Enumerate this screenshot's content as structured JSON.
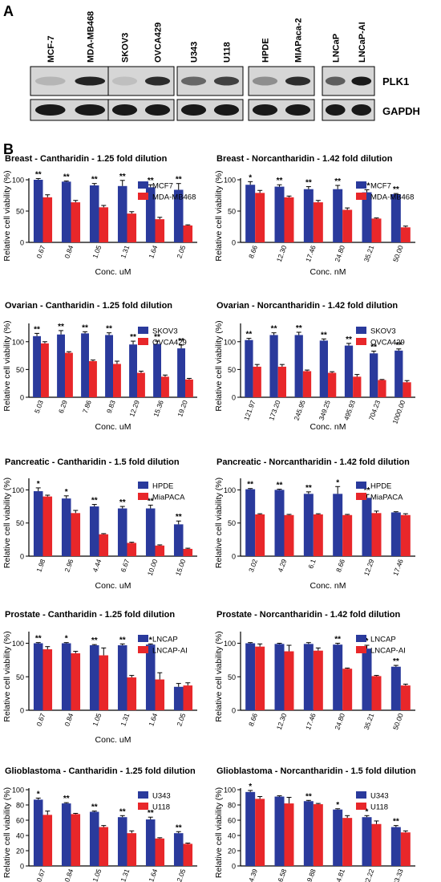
{
  "panel_labels": {
    "a": "A",
    "b": "B"
  },
  "blot": {
    "groups": [
      {
        "lanes": [
          "MCF-7",
          "MDA-MB468"
        ],
        "plk1": [
          0.15,
          0.9
        ]
      },
      {
        "lanes": [
          "SKOV3",
          "OVCA429"
        ],
        "plk1": [
          0.1,
          0.85
        ]
      },
      {
        "lanes": [
          "U343",
          "U118"
        ],
        "plk1": [
          0.55,
          0.75
        ]
      },
      {
        "lanes": [
          "HPDE",
          "MIAPaca-2"
        ],
        "plk1": [
          0.35,
          0.85
        ]
      },
      {
        "lanes": [
          "LNCaP",
          "LNCaP-AI"
        ],
        "plk1": [
          0.6,
          0.95
        ]
      }
    ],
    "row_labels": [
      "PLK1",
      "GAPDH"
    ]
  },
  "colors": {
    "series1": "#2a3a9c",
    "series2": "#e8272a"
  },
  "chart_data": [
    {
      "type": "bar",
      "title": "Breast - Cantharidin - 1.25 fold dilution",
      "xlabel": "Conc. uM",
      "ylabel": "Relative cell viability (%)",
      "ylim": [
        0,
        100
      ],
      "yticks": [
        "0",
        "50",
        "100"
      ],
      "categories": [
        "0.67",
        "0.84",
        "1.05",
        "1.31",
        "1.64",
        "2.05"
      ],
      "series": [
        {
          "name": "MCF7",
          "values": [
            100,
            97,
            91,
            90,
            88,
            84
          ],
          "err": [
            2,
            1,
            3,
            9,
            4,
            10
          ]
        },
        {
          "name": "MDA-MB468",
          "values": [
            72,
            64,
            56,
            46,
            37,
            27
          ],
          "err": [
            4,
            3,
            3,
            3,
            3,
            1
          ]
        }
      ],
      "annotations": [
        "**",
        "**",
        "**",
        "**",
        "**",
        "**"
      ]
    },
    {
      "type": "bar",
      "title": "Breast - Norcantharidin - 1.42 fold dilution",
      "xlabel": "Conc. nM",
      "ylabel": "Relative cell viability (%)",
      "ylim": [
        0,
        100
      ],
      "yticks": [
        "0",
        "50",
        "100"
      ],
      "categories": [
        "8.66",
        "12.30",
        "17.46",
        "24.80",
        "35.21",
        "50.00"
      ],
      "series": [
        {
          "name": "MCF7",
          "values": [
            92,
            89,
            85,
            85,
            80,
            77
          ],
          "err": [
            5,
            3,
            4,
            6,
            4,
            1
          ]
        },
        {
          "name": "MDA-MB468",
          "values": [
            79,
            72,
            64,
            52,
            38,
            24
          ],
          "err": [
            4,
            2,
            3,
            3,
            1,
            2
          ]
        }
      ],
      "annotations": [
        "*",
        "**",
        "**",
        "**",
        "**",
        "**"
      ]
    },
    {
      "type": "bar",
      "title": "Ovarian - Cantharidin - 1.25 fold dilution",
      "xlabel": "Conc. uM",
      "ylabel": "Relative cell viability (%)",
      "ylim": [
        0,
        130
      ],
      "yticks": [
        "0",
        "50",
        "100"
      ],
      "categories": [
        "5.03",
        "6.29",
        "7.86",
        "9.83",
        "12.29",
        "15.36",
        "19.20"
      ],
      "series": [
        {
          "name": "SKOV3",
          "values": [
            110,
            113,
            115,
            112,
            95,
            96,
            88
          ],
          "err": [
            5,
            7,
            3,
            4,
            6,
            5,
            6
          ]
        },
        {
          "name": "OVCA429",
          "values": [
            97,
            80,
            65,
            60,
            44,
            37,
            32
          ],
          "err": [
            3,
            2,
            2,
            5,
            3,
            3,
            2
          ]
        }
      ],
      "annotations": [
        "**",
        "**",
        "**",
        "**",
        "**",
        "**",
        "**"
      ]
    },
    {
      "type": "bar",
      "title": "Ovarian - Norcantharidin - 1.42 fold dilution",
      "xlabel": "Conc. nM",
      "ylabel": "Relative cell viability (%)",
      "ylim": [
        0,
        130
      ],
      "yticks": [
        "0",
        "50",
        "100"
      ],
      "categories": [
        "121.97",
        "173.20",
        "245.95",
        "349.25",
        "495.93",
        "704.23",
        "1000.00"
      ],
      "series": [
        {
          "name": "SKOV3",
          "values": [
            103,
            112,
            112,
            102,
            93,
            79,
            84
          ],
          "err": [
            3,
            4,
            5,
            3,
            4,
            4,
            3
          ]
        },
        {
          "name": "OVCA429",
          "values": [
            55,
            55,
            47,
            44,
            37,
            31,
            27
          ],
          "err": [
            4,
            4,
            2,
            2,
            4,
            1,
            3
          ]
        }
      ],
      "annotations": [
        "**",
        "**",
        "**",
        "**",
        "**",
        "**",
        "**"
      ]
    },
    {
      "type": "bar",
      "title": "Pancreatic - Cantharidin - 1.5 fold dilution",
      "xlabel": "Conc. uM",
      "ylabel": "Relative cell viability (%)",
      "ylim": [
        0,
        115
      ],
      "yticks": [
        "0",
        "50",
        "100"
      ],
      "categories": [
        "1.98",
        "2.96",
        "4.44",
        "6.67",
        "10.00",
        "15.00"
      ],
      "series": [
        {
          "name": "HPDE",
          "values": [
            98,
            87,
            75,
            72,
            72,
            48
          ],
          "err": [
            5,
            4,
            3,
            3,
            5,
            5
          ]
        },
        {
          "name": "MiaPACA",
          "values": [
            90,
            65,
            33,
            20,
            16,
            11
          ],
          "err": [
            2,
            4,
            1,
            1,
            1,
            1
          ]
        }
      ],
      "annotations": [
        "*",
        "*",
        "**",
        "**",
        "**",
        "**"
      ]
    },
    {
      "type": "bar",
      "title": "Pancreatic - Norcantharidin - 1.42 fold dilution",
      "xlabel": "Conc. nM",
      "ylabel": "Relative cell viability (%)",
      "ylim": [
        0,
        115
      ],
      "yticks": [
        "0",
        "50",
        "100"
      ],
      "categories": [
        "3.02",
        "4.29",
        "6.1",
        "8.66",
        "12.29",
        "17.46"
      ],
      "series": [
        {
          "name": "HPDE",
          "values": [
            101,
            100,
            94,
            94,
            88,
            66
          ],
          "err": [
            1,
            1,
            3,
            11,
            5,
            1
          ]
        },
        {
          "name": "MiaPACA",
          "values": [
            63,
            62,
            63,
            62,
            65,
            62
          ],
          "err": [
            1,
            1,
            1,
            1,
            3,
            2
          ]
        }
      ],
      "annotations": [
        "**",
        "**",
        "**",
        "*",
        "**",
        ""
      ]
    },
    {
      "type": "bar",
      "title": "Prostate - Cantharidin - 1.25 fold dilution",
      "xlabel": "Conc. uM",
      "ylabel": "Relative cell viability (%)",
      "ylim": [
        0,
        115
      ],
      "yticks": [
        "0",
        "50",
        "100"
      ],
      "categories": [
        "0.67",
        "0.84",
        "1.05",
        "1.31",
        "1.64",
        "2.05"
      ],
      "series": [
        {
          "name": "LNCAP",
          "values": [
            100,
            100,
            97,
            97,
            98,
            35
          ],
          "err": [
            1,
            1,
            1,
            2,
            1,
            5
          ]
        },
        {
          "name": "LNCAP-AI",
          "values": [
            91,
            85,
            82,
            49,
            46,
            37
          ],
          "err": [
            4,
            3,
            11,
            3,
            10,
            4
          ]
        }
      ],
      "annotations": [
        "**",
        "*",
        "**",
        "**",
        "*",
        ""
      ]
    },
    {
      "type": "bar",
      "title": "Prostate - Norcantharidin - 1.42 fold dilution",
      "xlabel": "",
      "ylabel": "Relative cell viability (%)",
      "ylim": [
        0,
        115
      ],
      "yticks": [
        "0",
        "50",
        "100"
      ],
      "categories": [
        "8.66",
        "12.30",
        "17.46",
        "24.80",
        "35.21",
        "50.00"
      ],
      "series": [
        {
          "name": "LNCAP",
          "values": [
            100,
            99,
            99,
            98,
            92,
            65
          ],
          "err": [
            1,
            1,
            2,
            2,
            5,
            2
          ]
        },
        {
          "name": "LNCAP-AI",
          "values": [
            95,
            88,
            89,
            62,
            51,
            37
          ],
          "err": [
            4,
            9,
            4,
            1,
            1,
            2
          ]
        }
      ],
      "annotations": [
        "",
        "",
        "",
        "**",
        "*",
        "**"
      ]
    },
    {
      "type": "bar",
      "title": "Glioblastoma - Cantharidin - 1.25 fold dilution",
      "xlabel": "Conc. uM",
      "ylabel": "Relative cell viability (%)",
      "ylim": [
        0,
        100
      ],
      "yticks": [
        "0",
        "20",
        "40",
        "60",
        "80",
        "100"
      ],
      "categories": [
        "0.67",
        "0.84",
        "1.05",
        "1.31",
        "1.64",
        "2.05"
      ],
      "series": [
        {
          "name": "U343",
          "values": [
            87,
            82,
            71,
            64,
            61,
            43
          ],
          "err": [
            2,
            1,
            1,
            2,
            3,
            2
          ]
        },
        {
          "name": "U118",
          "values": [
            67,
            68,
            51,
            43,
            36,
            29
          ],
          "err": [
            5,
            1,
            2,
            3,
            1,
            1
          ]
        }
      ],
      "annotations": [
        "*",
        "**",
        "**",
        "**",
        "**",
        "**"
      ]
    },
    {
      "type": "bar",
      "title": "Glioblastoma - Norcantharidin - 1.5 fold dilution",
      "xlabel": "Conc. nM",
      "ylabel": "Relative cell viability (%)",
      "ylim": [
        0,
        100
      ],
      "yticks": [
        "0",
        "20",
        "40",
        "60",
        "80",
        "100"
      ],
      "categories": [
        "4.39",
        "6.58",
        "9.88",
        "14.81",
        "22.22",
        "33.33"
      ],
      "series": [
        {
          "name": "U343",
          "values": [
            97,
            91,
            85,
            74,
            64,
            51
          ],
          "err": [
            2,
            1,
            1,
            1,
            2,
            2
          ]
        },
        {
          "name": "U118",
          "values": [
            88,
            82,
            81,
            63,
            55,
            44
          ],
          "err": [
            3,
            8,
            1,
            3,
            4,
            2
          ]
        }
      ],
      "annotations": [
        "*",
        "",
        "**",
        "*",
        "*",
        "**"
      ]
    }
  ]
}
